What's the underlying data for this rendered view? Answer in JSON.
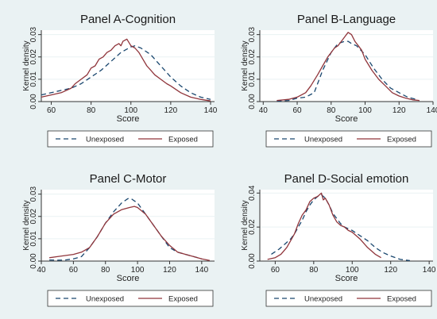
{
  "figure": {
    "background_color": "#eaf2f3",
    "plot_background_color": "#ffffff",
    "unexposed_color": "#1a476f",
    "exposed_color": "#90353b"
  },
  "chart_data": [
    {
      "type": "line",
      "title": "Panel A-Cognition",
      "xlabel": "Score",
      "ylabel": "Kernel density",
      "xlim": [
        55,
        142
      ],
      "ylim": [
        0,
        0.032
      ],
      "xticks": [
        60,
        80,
        100,
        120,
        140
      ],
      "yticks": [
        0,
        0.01,
        0.02,
        0.03
      ],
      "ytick_labels": [
        "0.00",
        "0.01",
        "0.02",
        "0.03"
      ],
      "grid": true,
      "legend": "bottom",
      "series": [
        {
          "name": "Unexposed",
          "style": "dashed",
          "x": [
            55,
            60,
            65,
            70,
            75,
            80,
            85,
            90,
            95,
            100,
            102,
            105,
            110,
            115,
            120,
            125,
            130,
            135,
            140
          ],
          "y": [
            0.003,
            0.004,
            0.005,
            0.006,
            0.008,
            0.011,
            0.014,
            0.018,
            0.022,
            0.0245,
            0.025,
            0.024,
            0.021,
            0.016,
            0.011,
            0.007,
            0.004,
            0.002,
            0.001
          ]
        },
        {
          "name": "Exposed",
          "style": "solid",
          "x": [
            55,
            60,
            65,
            70,
            72,
            75,
            78,
            80,
            82,
            84,
            86,
            88,
            90,
            92,
            94,
            95,
            96,
            98,
            100,
            102,
            104,
            106,
            108,
            110,
            112,
            115,
            118,
            120,
            125,
            130,
            135,
            140
          ],
          "y": [
            0.002,
            0.003,
            0.004,
            0.006,
            0.008,
            0.01,
            0.012,
            0.015,
            0.016,
            0.019,
            0.02,
            0.022,
            0.023,
            0.025,
            0.026,
            0.025,
            0.027,
            0.028,
            0.025,
            0.024,
            0.022,
            0.019,
            0.016,
            0.014,
            0.012,
            0.01,
            0.008,
            0.007,
            0.004,
            0.002,
            0.001,
            0.0003
          ]
        }
      ]
    },
    {
      "type": "line",
      "title": "Panel B-Language",
      "xlabel": "Score",
      "ylabel": "Kernel density",
      "xlim": [
        38,
        140
      ],
      "ylim": [
        0,
        0.032
      ],
      "xticks": [
        40,
        60,
        80,
        100,
        120,
        140
      ],
      "yticks": [
        0,
        0.01,
        0.02,
        0.03
      ],
      "ytick_labels": [
        "0.00",
        "0.01",
        "0.02",
        "0.03"
      ],
      "grid": true,
      "legend": "bottom",
      "series": [
        {
          "name": "Unexposed",
          "style": "dashed",
          "x": [
            48,
            55,
            60,
            65,
            70,
            72,
            75,
            80,
            84,
            88,
            90,
            92,
            95,
            100,
            105,
            110,
            115,
            120,
            125,
            130
          ],
          "y": [
            0.0002,
            0.0005,
            0.0015,
            0.002,
            0.004,
            0.008,
            0.014,
            0.022,
            0.026,
            0.027,
            0.027,
            0.026,
            0.025,
            0.021,
            0.015,
            0.01,
            0.006,
            0.004,
            0.002,
            0.001
          ]
        },
        {
          "name": "Exposed",
          "style": "solid",
          "x": [
            48,
            55,
            60,
            65,
            68,
            72,
            75,
            78,
            80,
            82,
            84,
            86,
            88,
            90,
            92,
            94,
            96,
            98,
            100,
            104,
            108,
            112,
            116,
            120,
            124,
            128,
            132
          ],
          "y": [
            0.0005,
            0.001,
            0.002,
            0.004,
            0.007,
            0.012,
            0.016,
            0.02,
            0.022,
            0.024,
            0.025,
            0.027,
            0.029,
            0.031,
            0.03,
            0.027,
            0.025,
            0.023,
            0.019,
            0.014,
            0.01,
            0.007,
            0.004,
            0.0025,
            0.0015,
            0.0008,
            0.0005
          ]
        }
      ]
    },
    {
      "type": "line",
      "title": "Panel C-Motor",
      "xlabel": "Score",
      "ylabel": "Kernel density",
      "xlim": [
        40,
        148
      ],
      "ylim": [
        0,
        0.032
      ],
      "xticks": [
        40,
        60,
        80,
        100,
        120,
        140
      ],
      "yticks": [
        0,
        0.01,
        0.02,
        0.03
      ],
      "ytick_labels": [
        "0.00",
        "0.01",
        "0.02",
        "0.03"
      ],
      "grid": true,
      "legend": "bottom",
      "series": [
        {
          "name": "Unexposed",
          "style": "dashed",
          "x": [
            45,
            50,
            55,
            60,
            65,
            70,
            75,
            80,
            85,
            90,
            94,
            96,
            100,
            105,
            110,
            115,
            120,
            125,
            130,
            135,
            140
          ],
          "y": [
            0.0005,
            0.0004,
            0.0005,
            0.001,
            0.002,
            0.006,
            0.011,
            0.017,
            0.022,
            0.026,
            0.028,
            0.028,
            0.026,
            0.021,
            0.016,
            0.011,
            0.006,
            0.004,
            0.003,
            0.002,
            0.001
          ]
        },
        {
          "name": "Exposed",
          "style": "solid",
          "x": [
            45,
            50,
            55,
            60,
            65,
            70,
            75,
            80,
            85,
            90,
            95,
            98,
            100,
            105,
            110,
            115,
            120,
            125,
            130,
            135,
            140,
            145
          ],
          "y": [
            0.0015,
            0.002,
            0.0025,
            0.003,
            0.004,
            0.006,
            0.011,
            0.017,
            0.021,
            0.023,
            0.024,
            0.0245,
            0.024,
            0.021,
            0.016,
            0.011,
            0.007,
            0.004,
            0.003,
            0.002,
            0.001,
            0.0003
          ]
        }
      ]
    },
    {
      "type": "line",
      "title": "Panel D-Social emotion",
      "xlabel": "Score",
      "ylabel": "Kernel density",
      "xlim": [
        52,
        142
      ],
      "ylim": [
        0,
        0.042
      ],
      "xticks": [
        60,
        80,
        100,
        120,
        140
      ],
      "yticks": [
        0,
        0.02,
        0.04
      ],
      "ytick_labels": [
        "0.00",
        "0.02",
        "0.04"
      ],
      "grid": true,
      "legend": "bottom",
      "series": [
        {
          "name": "Unexposed",
          "style": "dashed",
          "x": [
            58,
            62,
            65,
            68,
            70,
            72,
            74,
            76,
            78,
            80,
            82,
            84,
            86,
            88,
            90,
            92,
            94,
            96,
            98,
            100,
            104,
            108,
            112,
            116,
            120,
            125,
            130
          ],
          "y": [
            0.004,
            0.007,
            0.01,
            0.013,
            0.016,
            0.02,
            0.024,
            0.029,
            0.033,
            0.036,
            0.038,
            0.039,
            0.037,
            0.033,
            0.028,
            0.025,
            0.022,
            0.02,
            0.019,
            0.018,
            0.015,
            0.012,
            0.008,
            0.005,
            0.003,
            0.001,
            0.0003
          ]
        },
        {
          "name": "Exposed",
          "style": "solid",
          "x": [
            56,
            60,
            63,
            66,
            68,
            70,
            72,
            74,
            76,
            78,
            80,
            82,
            84,
            85,
            86,
            88,
            90,
            92,
            94,
            96,
            98,
            100,
            104,
            108,
            112,
            115
          ],
          "y": [
            0.001,
            0.002,
            0.004,
            0.008,
            0.012,
            0.016,
            0.022,
            0.027,
            0.03,
            0.035,
            0.037,
            0.038,
            0.04,
            0.036,
            0.037,
            0.033,
            0.027,
            0.023,
            0.021,
            0.02,
            0.018,
            0.017,
            0.013,
            0.008,
            0.004,
            0.002
          ]
        }
      ]
    }
  ]
}
